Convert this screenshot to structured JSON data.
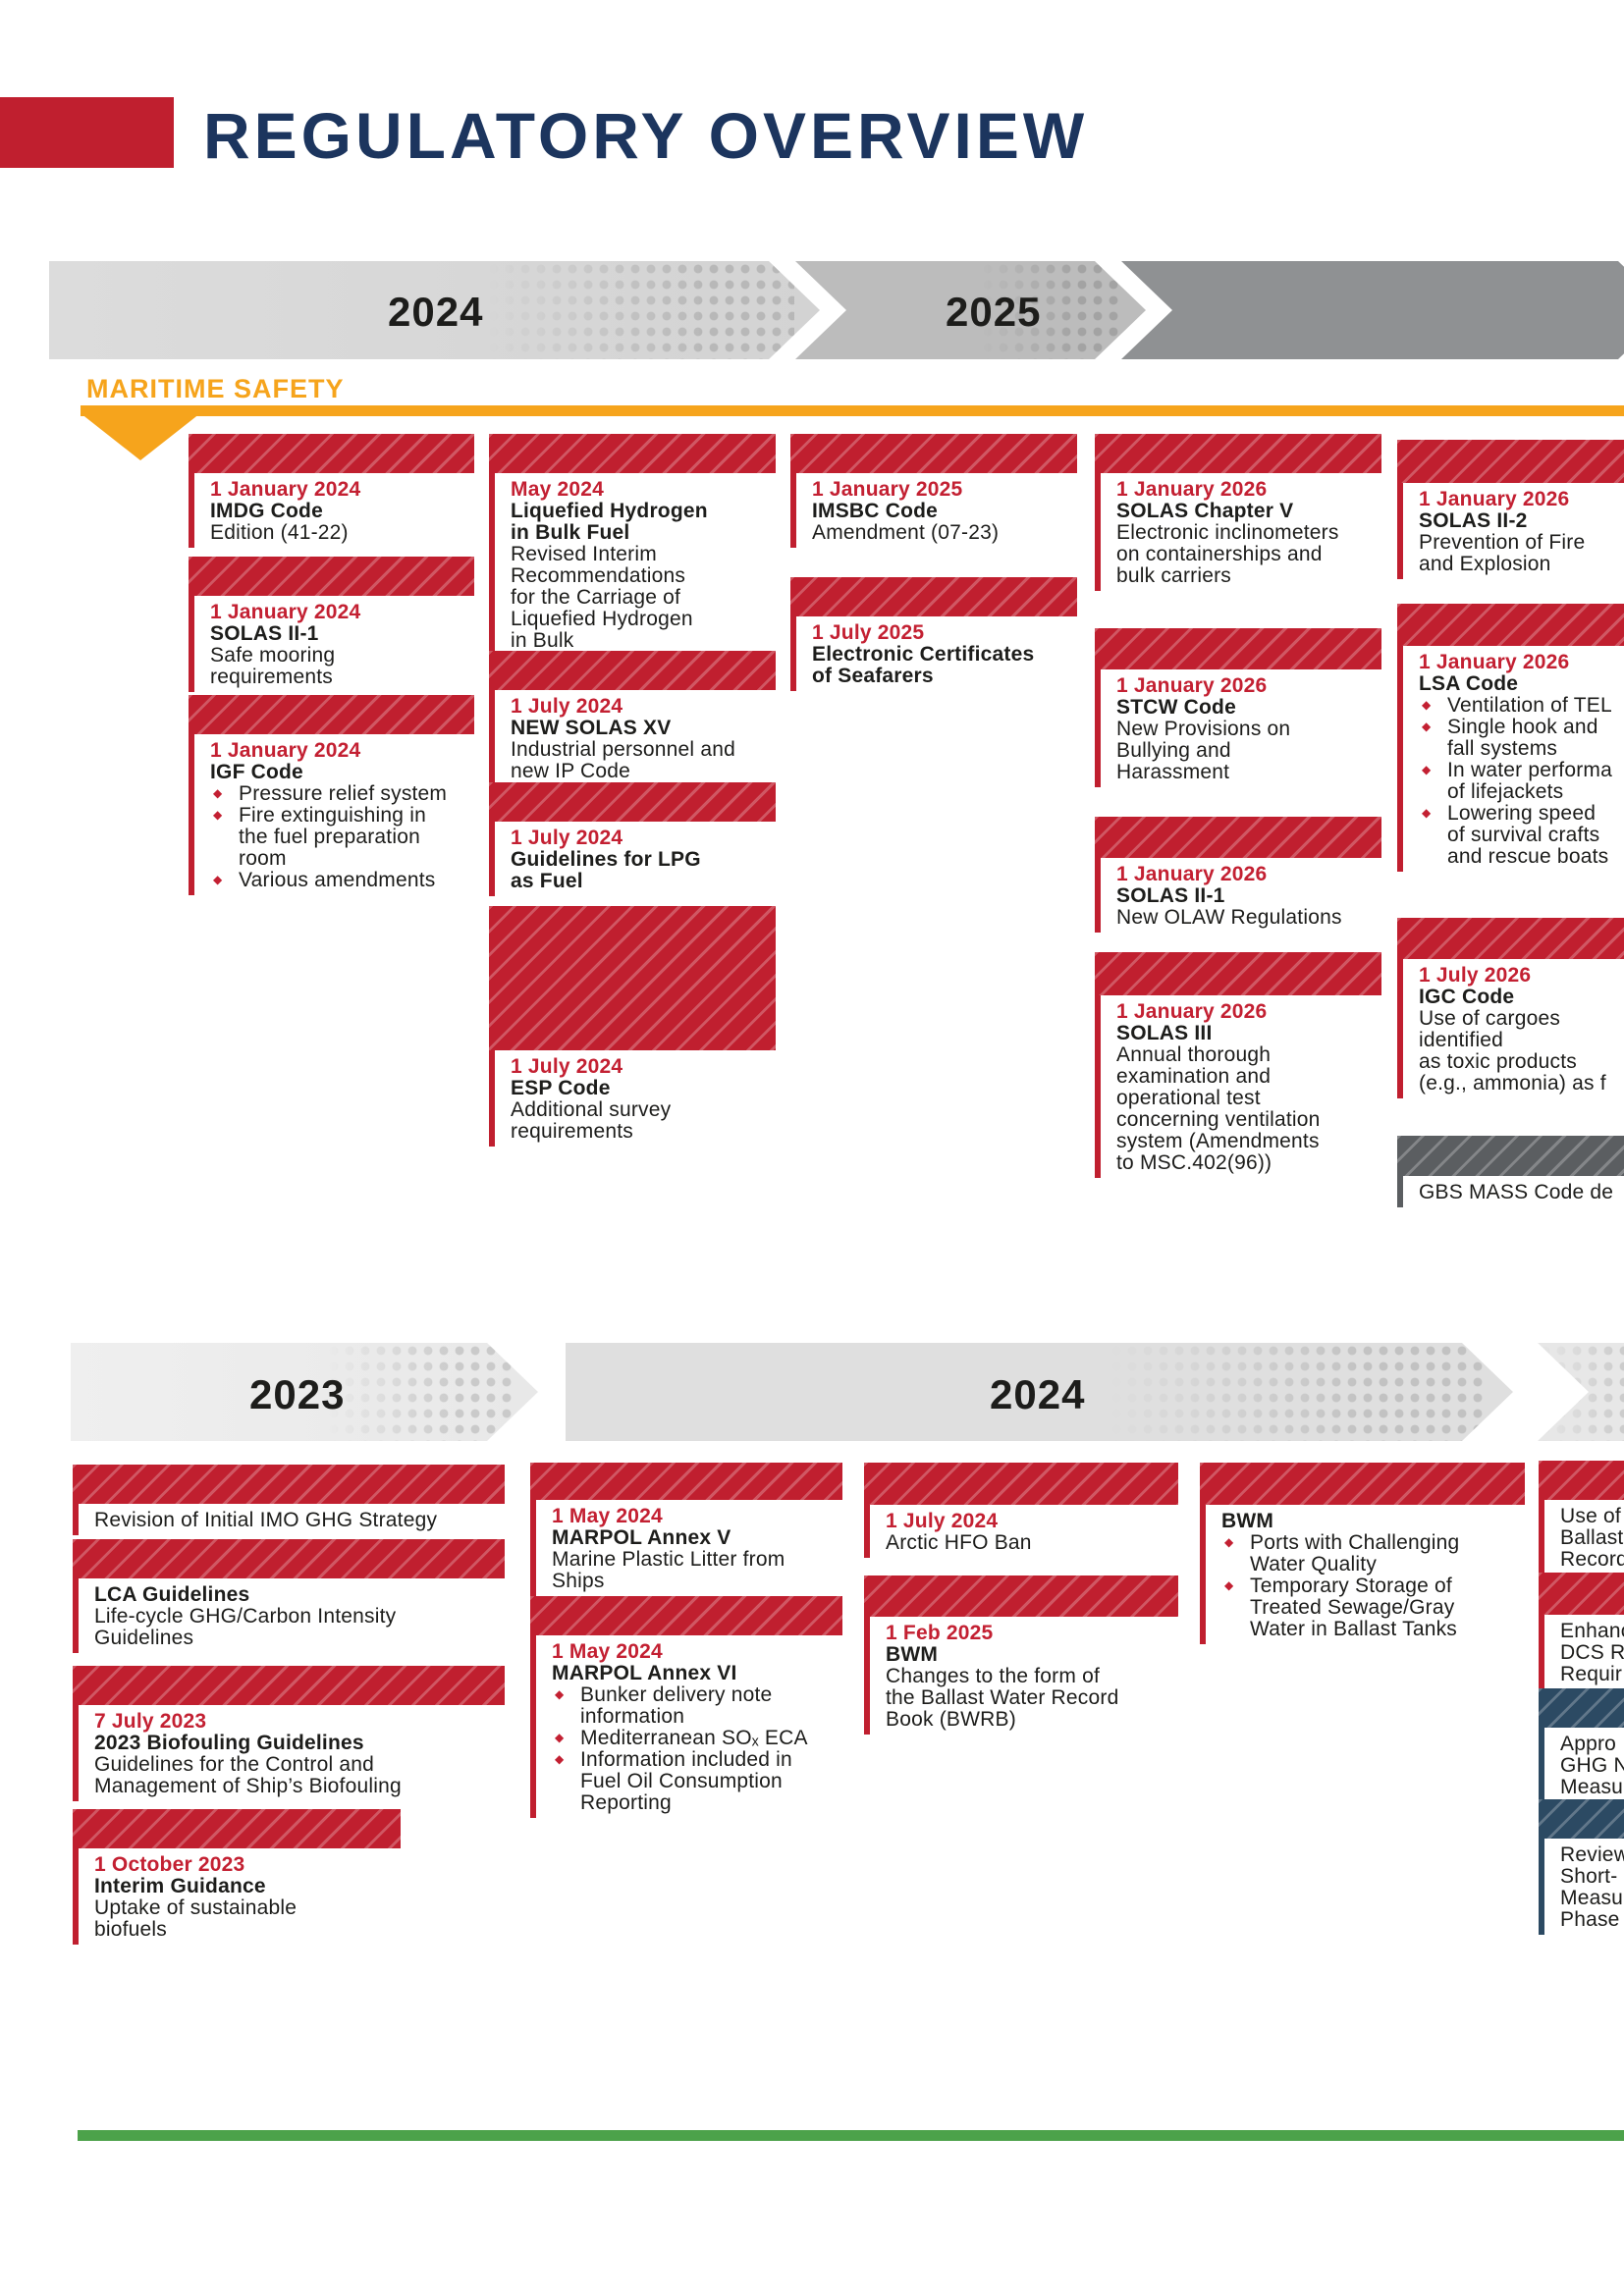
{
  "title": {
    "text": "REGULATORY OVERVIEW"
  },
  "colors": {
    "accent_red": "#c01f2f",
    "date_red": "#c32032",
    "title_navy": "#1c355e",
    "orange": "#f6a41c",
    "navy_block": "#2c4a63",
    "gray_block": "#5b5e61",
    "green_divider": "#4ca24a",
    "text": "#1d1d1b",
    "timeline_grays": [
      "#d7d7d7",
      "#bcbcbc",
      "#8f9193",
      "#ececec",
      "#dfdfdf",
      "#e7e7e7"
    ]
  },
  "timeline_top": {
    "years": [
      {
        "label": "2024"
      },
      {
        "label": "2025"
      }
    ]
  },
  "timeline_bottom": {
    "years": [
      {
        "label": "2023"
      },
      {
        "label": "2024"
      }
    ]
  },
  "sections": {
    "maritime_safety": {
      "label": "MARITIME SAFETY",
      "columns": [
        {
          "blocks": [
            {
              "rows": [
                {
                  "s": "date",
                  "t": "1 January 2024"
                },
                {
                  "s": "title",
                  "t": "IMDG Code"
                },
                {
                  "s": "body",
                  "t": "Edition (41-22)"
                }
              ]
            },
            {
              "rows": [
                {
                  "s": "date",
                  "t": "1 January 2024"
                },
                {
                  "s": "title",
                  "t": "SOLAS II-1"
                },
                {
                  "s": "body",
                  "t": "Safe mooring"
                },
                {
                  "s": "body",
                  "t": "requirements"
                }
              ]
            },
            {
              "rows": [
                {
                  "s": "date",
                  "t": "1 January 2024"
                },
                {
                  "s": "title",
                  "t": "IGF Code"
                },
                {
                  "s": "bullet",
                  "t": "Pressure relief system"
                },
                {
                  "s": "bullet",
                  "t": "Fire extinguishing in"
                },
                {
                  "s": "cont",
                  "t": "the fuel preparation"
                },
                {
                  "s": "cont",
                  "t": "room"
                },
                {
                  "s": "bullet",
                  "t": "Various amendments"
                }
              ]
            }
          ]
        },
        {
          "blocks": [
            {
              "rows": [
                {
                  "s": "date",
                  "t": "May 2024"
                },
                {
                  "s": "title",
                  "t": "Liquefied Hydrogen"
                },
                {
                  "s": "title",
                  "t": "in Bulk Fuel"
                },
                {
                  "s": "body",
                  "t": "Revised Interim"
                },
                {
                  "s": "body",
                  "t": "Recommendations"
                },
                {
                  "s": "body",
                  "t": "for the Carriage of"
                },
                {
                  "s": "body",
                  "t": "Liquefied Hydrogen"
                },
                {
                  "s": "body",
                  "t": "in Bulk"
                }
              ]
            },
            {
              "rows": [
                {
                  "s": "date",
                  "t": "1 July 2024"
                },
                {
                  "s": "title",
                  "t": "NEW SOLAS XV"
                },
                {
                  "s": "body",
                  "t": "Industrial personnel and"
                },
                {
                  "s": "body",
                  "t": "new IP Code"
                }
              ]
            },
            {
              "rows": [
                {
                  "s": "date",
                  "t": "1 July 2024"
                },
                {
                  "s": "title",
                  "t": "Guidelines for LPG"
                },
                {
                  "s": "title",
                  "t": "as Fuel"
                }
              ]
            },
            {
              "rows": [
                {
                  "s": "date",
                  "t": "1 July 2024"
                },
                {
                  "s": "title",
                  "t": "ESP Code"
                },
                {
                  "s": "body",
                  "t": "Additional survey"
                },
                {
                  "s": "body",
                  "t": "requirements"
                }
              ]
            }
          ]
        },
        {
          "blocks": [
            {
              "rows": [
                {
                  "s": "date",
                  "t": "1 January 2025"
                },
                {
                  "s": "title",
                  "t": "IMSBC Code"
                },
                {
                  "s": "body",
                  "t": "Amendment (07-23)"
                }
              ]
            },
            {
              "rows": [
                {
                  "s": "date",
                  "t": "1 July 2025"
                },
                {
                  "s": "title",
                  "t": "Electronic Certificates"
                },
                {
                  "s": "title",
                  "t": "of Seafarers"
                }
              ]
            }
          ]
        },
        {
          "blocks": [
            {
              "rows": [
                {
                  "s": "date",
                  "t": "1 January 2026"
                },
                {
                  "s": "title",
                  "t": "SOLAS Chapter V"
                },
                {
                  "s": "body",
                  "t": "Electronic inclinometers"
                },
                {
                  "s": "body",
                  "t": "on containerships and"
                },
                {
                  "s": "body",
                  "t": "bulk carriers"
                }
              ]
            },
            {
              "rows": [
                {
                  "s": "date",
                  "t": "1 January 2026"
                },
                {
                  "s": "title",
                  "t": "STCW Code"
                },
                {
                  "s": "body",
                  "t": "New Provisions on"
                },
                {
                  "s": "body",
                  "t": "Bullying and"
                },
                {
                  "s": "body",
                  "t": "Harassment"
                }
              ]
            },
            {
              "rows": [
                {
                  "s": "date",
                  "t": "1 January 2026"
                },
                {
                  "s": "title",
                  "t": "SOLAS II-1"
                },
                {
                  "s": "body",
                  "t": "New OLAW Regulations"
                }
              ]
            },
            {
              "rows": [
                {
                  "s": "date",
                  "t": "1 January 2026"
                },
                {
                  "s": "title",
                  "t": "SOLAS III"
                },
                {
                  "s": "body",
                  "t": "Annual thorough"
                },
                {
                  "s": "body",
                  "t": "examination and"
                },
                {
                  "s": "body",
                  "t": "operational test"
                },
                {
                  "s": "body",
                  "t": "concerning ventilation"
                },
                {
                  "s": "body",
                  "t": "system (Amendments"
                },
                {
                  "s": "body",
                  "t": "to MSC.402(96))"
                }
              ]
            }
          ]
        },
        {
          "blocks": [
            {
              "rows": [
                {
                  "s": "date",
                  "t": "1 January 2026"
                },
                {
                  "s": "title",
                  "t": "SOLAS II-2"
                },
                {
                  "s": "body",
                  "t": "Prevention of Fire"
                },
                {
                  "s": "body",
                  "t": "and Explosion"
                }
              ]
            },
            {
              "rows": [
                {
                  "s": "date",
                  "t": "1 January 2026"
                },
                {
                  "s": "title",
                  "t": "LSA Code"
                },
                {
                  "s": "bullet",
                  "t": "Ventilation of TEL"
                },
                {
                  "s": "bullet",
                  "t": "Single hook and"
                },
                {
                  "s": "cont",
                  "t": "fall systems"
                },
                {
                  "s": "bullet",
                  "t": "In water performa"
                },
                {
                  "s": "cont",
                  "t": "of lifejackets"
                },
                {
                  "s": "bullet",
                  "t": "Lowering speed"
                },
                {
                  "s": "cont",
                  "t": "of survival crafts"
                },
                {
                  "s": "cont",
                  "t": "and rescue boats"
                }
              ]
            },
            {
              "rows": [
                {
                  "s": "date",
                  "t": "1 July 2026"
                },
                {
                  "s": "title",
                  "t": "IGC Code"
                },
                {
                  "s": "body",
                  "t": "Use of cargoes"
                },
                {
                  "s": "body",
                  "t": "identified"
                },
                {
                  "s": "body",
                  "t": "as toxic products"
                },
                {
                  "s": "body",
                  "t": "(e.g., ammonia) as f"
                }
              ]
            },
            {
              "rows": [
                {
                  "s": "body",
                  "t": "GBS MASS Code de"
                }
              ]
            }
          ]
        }
      ]
    },
    "environment": {
      "columns": [
        {
          "blocks": [
            {
              "rows": [
                {
                  "s": "body",
                  "t": "Revision of Initial IMO GHG Strategy"
                }
              ]
            },
            {
              "rows": [
                {
                  "s": "title",
                  "t": "LCA Guidelines"
                },
                {
                  "s": "body",
                  "t": "Life-cycle GHG/Carbon Intensity"
                },
                {
                  "s": "body",
                  "t": "Guidelines"
                }
              ]
            },
            {
              "rows": [
                {
                  "s": "date",
                  "t": "7 July 2023"
                },
                {
                  "s": "title",
                  "t": "2023 Biofouling Guidelines"
                },
                {
                  "s": "body",
                  "t": "Guidelines for the Control and"
                },
                {
                  "s": "body",
                  "t": "Management of Ship’s Biofouling"
                }
              ]
            },
            {
              "rows": [
                {
                  "s": "date",
                  "t": "1 October 2023"
                },
                {
                  "s": "title",
                  "t": "Interim Guidance"
                },
                {
                  "s": "body",
                  "t": "Uptake of sustainable"
                },
                {
                  "s": "body",
                  "t": "biofuels"
                }
              ]
            }
          ]
        },
        {
          "blocks": [
            {
              "rows": [
                {
                  "s": "date",
                  "t": "1 May 2024"
                },
                {
                  "s": "title",
                  "t": "MARPOL Annex V"
                },
                {
                  "s": "body",
                  "t": "Marine Plastic Litter from"
                },
                {
                  "s": "body",
                  "t": "Ships"
                }
              ]
            },
            {
              "rows": [
                {
                  "s": "date",
                  "t": "1 May 2024"
                },
                {
                  "s": "title",
                  "t": "MARPOL Annex VI"
                },
                {
                  "s": "bullet",
                  "t": "Bunker delivery note"
                },
                {
                  "s": "cont",
                  "t": "information"
                },
                {
                  "s": "bullet",
                  "t": "Mediterranean SOₓ ECA"
                },
                {
                  "s": "bullet",
                  "t": "Information included in"
                },
                {
                  "s": "cont",
                  "t": "Fuel Oil Consumption"
                },
                {
                  "s": "cont",
                  "t": "Reporting"
                }
              ]
            }
          ]
        },
        {
          "blocks": [
            {
              "rows": [
                {
                  "s": "date",
                  "t": "1 July 2024"
                },
                {
                  "s": "body",
                  "t": "Arctic HFO Ban"
                }
              ]
            },
            {
              "rows": [
                {
                  "s": "date",
                  "t": "1 Feb 2025"
                },
                {
                  "s": "title",
                  "t": "BWM"
                },
                {
                  "s": "body",
                  "t": "Changes to the form of"
                },
                {
                  "s": "body",
                  "t": "the Ballast Water Record"
                },
                {
                  "s": "body",
                  "t": "Book (BWRB)"
                }
              ]
            }
          ]
        },
        {
          "blocks": [
            {
              "rows": [
                {
                  "s": "title",
                  "t": "BWM"
                },
                {
                  "s": "bullet",
                  "t": "Ports with Challenging"
                },
                {
                  "s": "cont",
                  "t": "Water Quality"
                },
                {
                  "s": "bullet",
                  "t": "Temporary Storage of"
                },
                {
                  "s": "cont",
                  "t": "Treated Sewage/Gray"
                },
                {
                  "s": "cont",
                  "t": "Water in Ballast Tanks"
                }
              ]
            }
          ]
        },
        {
          "blocks": [
            {
              "rows": [
                {
                  "s": "body",
                  "t": "Use of"
                },
                {
                  "s": "body",
                  "t": "Ballast"
                },
                {
                  "s": "body",
                  "t": "Record"
                }
              ]
            },
            {
              "rows": [
                {
                  "s": "body",
                  "t": "Enhanc"
                },
                {
                  "s": "body",
                  "t": "DCS Re"
                },
                {
                  "s": "body",
                  "t": "Requir"
                }
              ]
            },
            {
              "rows": [
                {
                  "s": "body",
                  "t": "Appro"
                },
                {
                  "s": "body",
                  "t": "GHG N"
                },
                {
                  "s": "body",
                  "t": "Measu"
                }
              ]
            },
            {
              "rows": [
                {
                  "s": "body",
                  "t": "Review"
                },
                {
                  "s": "body",
                  "t": "Short-"
                },
                {
                  "s": "body",
                  "t": "Measur"
                },
                {
                  "s": "body",
                  "t": "Phase"
                }
              ]
            }
          ]
        }
      ]
    }
  }
}
